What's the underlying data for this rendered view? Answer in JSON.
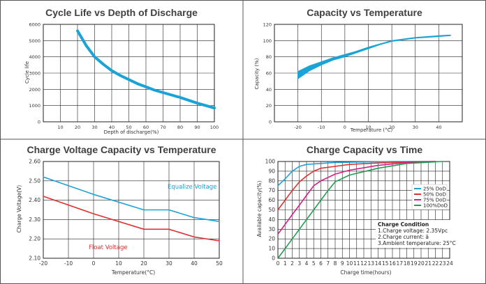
{
  "chart_data": [
    {
      "type": "line",
      "title": "Cycle Life vs Depth of Discharge",
      "xlabel": "Depth of discharge(%)",
      "ylabel": "Cycle life",
      "xlim": [
        0,
        100
      ],
      "ylim": [
        0,
        6000
      ],
      "xticks": [
        "10",
        "20",
        "30",
        "40",
        "50",
        "60",
        "70",
        "80",
        "90",
        "100"
      ],
      "yticks": [
        "0",
        "1000",
        "2000",
        "3000",
        "4000",
        "5000",
        "6000"
      ],
      "grid": true,
      "color": "#1aa3d6",
      "series": [
        {
          "x": [
            20,
            25,
            30,
            35,
            40,
            45,
            50,
            55,
            60,
            65,
            70,
            80,
            90,
            100
          ],
          "y": [
            5600,
            4700,
            4000,
            3550,
            3150,
            2850,
            2600,
            2350,
            2150,
            1950,
            1800,
            1500,
            1150,
            850
          ]
        }
      ]
    },
    {
      "type": "area",
      "title": "Capacity vs Temperature",
      "xlabel": "Temperature (°C)",
      "ylabel": "Capacity (%)",
      "xlim": [
        -30,
        50
      ],
      "ylim": [
        0,
        120
      ],
      "xticks": [
        "-20",
        "-10",
        "0",
        "10",
        "20",
        "30",
        "40"
      ],
      "yticks": [
        "0",
        "20",
        "40",
        "60",
        "80",
        "100",
        "120"
      ],
      "grid": true,
      "color": "#1aa3d6",
      "series": [
        {
          "x": [
            -20,
            -15,
            -10,
            -5,
            0,
            5,
            10,
            15,
            20,
            25,
            30,
            35,
            40,
            45
          ],
          "y_low": [
            53,
            63,
            70,
            76,
            80,
            85,
            90,
            95,
            99,
            101,
            103,
            104,
            105,
            106
          ],
          "y_high": [
            62,
            69,
            74,
            79,
            83,
            87,
            92,
            96,
            100,
            102,
            104,
            105,
            106,
            107
          ]
        }
      ]
    },
    {
      "type": "line",
      "title": "Charge Voltage Capacity vs Temperature",
      "xlabel": "Temperature(°C)",
      "ylabel": "Charge Voltage(V)",
      "xlim": [
        -20,
        50
      ],
      "ylim": [
        2.1,
        2.6
      ],
      "xticks": [
        "-20",
        "-10",
        "0",
        "10",
        "20",
        "30",
        "40",
        "50"
      ],
      "yticks": [
        "2.10",
        "2.20",
        "2.30",
        "2.40",
        "2.50",
        "2.60"
      ],
      "grid": true,
      "series": [
        {
          "name": "Equalize Voltage",
          "color": "#1aa3d6",
          "x": [
            -20,
            0,
            20,
            30,
            40,
            50
          ],
          "y": [
            2.52,
            2.43,
            2.35,
            2.35,
            2.31,
            2.29
          ]
        },
        {
          "name": "Float Voltage",
          "color": "#e03030",
          "x": [
            -20,
            0,
            20,
            30,
            40,
            50
          ],
          "y": [
            2.42,
            2.33,
            2.25,
            2.25,
            2.21,
            2.19
          ]
        }
      ]
    },
    {
      "type": "line",
      "title": "Charge  Capacity  vs  Time",
      "xlabel": "Charge time(hours)",
      "ylabel": "Available capacity(%)",
      "xlim": [
        0,
        24
      ],
      "ylim": [
        0,
        100
      ],
      "xticks": [
        "0",
        "1",
        "2",
        "3",
        "4",
        "5",
        "6",
        "7",
        "8",
        "9",
        "10",
        "11",
        "12",
        "13",
        "14",
        "15",
        "16",
        "17",
        "18",
        "19",
        "20",
        "21",
        "22",
        "23",
        "24"
      ],
      "yticks": [
        "0",
        "10",
        "20",
        "30",
        "40",
        "50",
        "60",
        "70",
        "80",
        "90",
        "100"
      ],
      "grid": true,
      "legend": "right",
      "series": [
        {
          "name": "25%  DoD",
          "color": "#1aa3d6",
          "x": [
            0,
            1,
            2,
            3,
            4,
            6,
            8,
            12,
            16,
            22
          ],
          "y": [
            75,
            82,
            90,
            95,
            97,
            98,
            99,
            99.5,
            100,
            100
          ]
        },
        {
          "name": "50%  DoD",
          "color": "#e03030",
          "x": [
            0,
            1,
            2,
            3,
            4,
            5,
            6,
            8,
            10,
            14,
            18,
            22
          ],
          "y": [
            50,
            60,
            70,
            79,
            85,
            90,
            93,
            95,
            97,
            98.5,
            99.5,
            100
          ]
        },
        {
          "name": "75%  DoD",
          "color": "#d01f8c",
          "x": [
            0,
            1,
            2,
            3,
            4,
            5,
            6,
            8,
            10,
            14,
            18,
            22
          ],
          "y": [
            25,
            35,
            45,
            55,
            65,
            75,
            80,
            87,
            91,
            96,
            99,
            100
          ]
        },
        {
          "name": "100%DoD",
          "color": "#1e9e50",
          "x": [
            0,
            1,
            2,
            3,
            4,
            5,
            6,
            7,
            8,
            10,
            14,
            18,
            23
          ],
          "y": [
            0,
            10,
            20,
            30,
            40,
            50,
            60,
            70,
            79,
            86,
            93,
            98,
            100
          ]
        }
      ],
      "condition": {
        "title": "Charge Condition",
        "lines": [
          "1.Charge voltage: 2.35Vpc",
          "2.Charge current: ä",
          "3.Ambient temperature: 25°C"
        ]
      }
    }
  ]
}
